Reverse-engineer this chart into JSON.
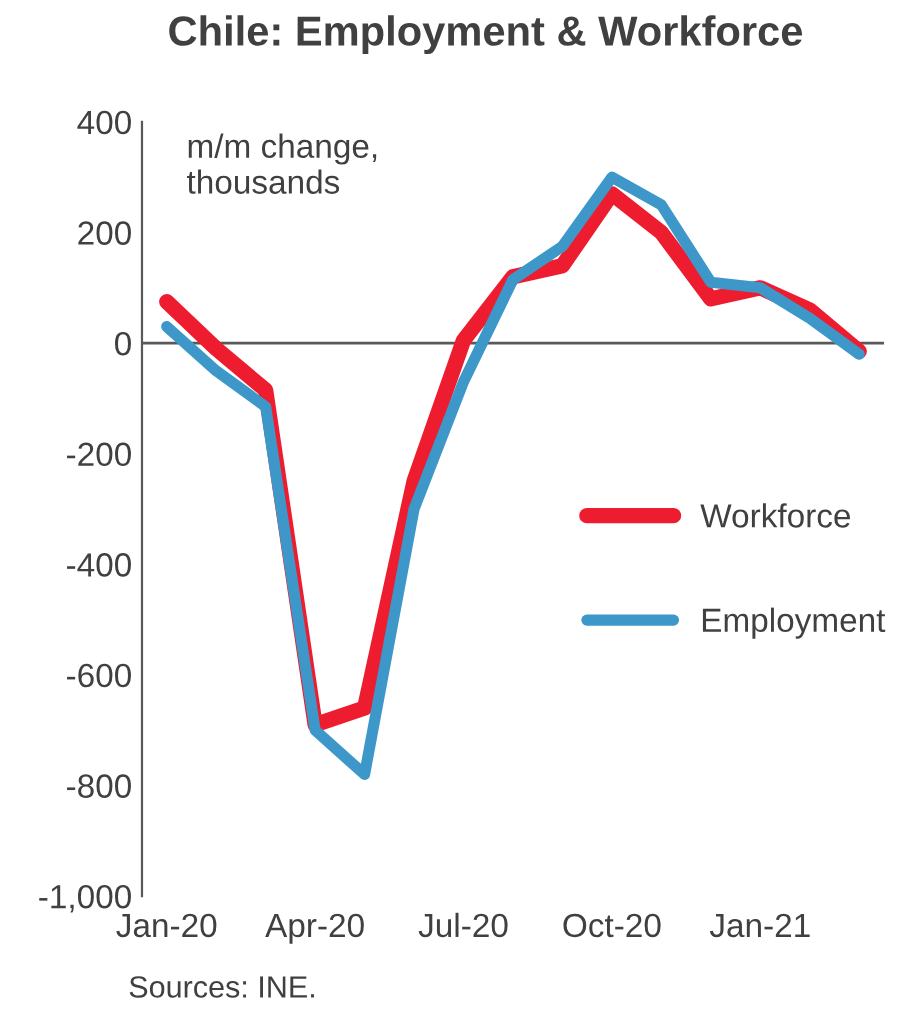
{
  "chart_data": {
    "type": "line",
    "title": "Chile: Employment & Workforce",
    "ylabel": "m/m change,\nthousands",
    "categories": [
      "Jan-20",
      null,
      null,
      "Apr-20",
      null,
      null,
      "Jul-20",
      null,
      null,
      "Oct-20",
      null,
      null,
      "Jan-21",
      null,
      null
    ],
    "series": [
      {
        "name": "Workforce",
        "color": "#ed1c2e",
        "values": [
          75,
          -10,
          -85,
          -690,
          -660,
          -250,
          5,
          120,
          140,
          270,
          200,
          80,
          100,
          60,
          -15
        ]
      },
      {
        "name": "Employment",
        "color": "#3d98c9",
        "values": [
          30,
          -50,
          -115,
          -700,
          -780,
          -300,
          -70,
          115,
          175,
          300,
          250,
          110,
          100,
          45,
          -20
        ]
      }
    ],
    "ylim": [
      -1000,
      400
    ],
    "yticks": [
      {
        "value": -1000,
        "label": "-1,000"
      },
      -800,
      -600,
      -400,
      -200,
      0,
      200,
      400
    ],
    "ref_lines": [
      {
        "axis": "y",
        "value": 0,
        "color": "#595959"
      }
    ],
    "grid": false,
    "legend": "right",
    "marker": "none",
    "line_style": "solid",
    "annotations": [
      "Sources: INE."
    ]
  }
}
